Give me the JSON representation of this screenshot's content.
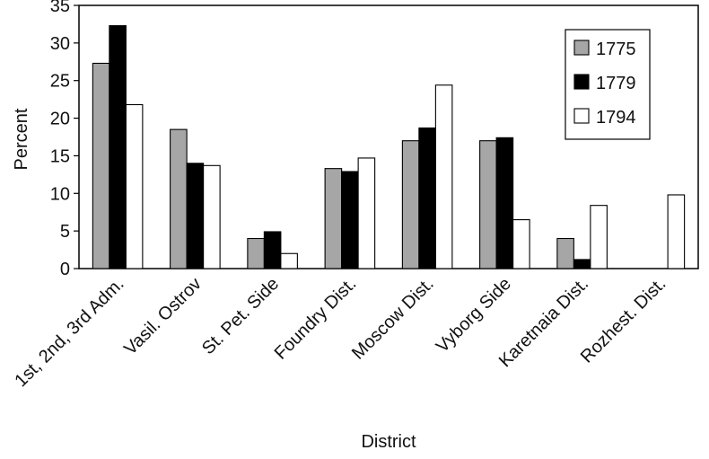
{
  "chart_data": {
    "type": "bar",
    "title": "",
    "xlabel": "District",
    "ylabel": "Percent",
    "ylim": [
      0,
      35
    ],
    "yticks": [
      0,
      5,
      10,
      15,
      20,
      25,
      30,
      35
    ],
    "categories": [
      "1st, 2nd, 3rd Adm.",
      "Vasil. Ostrov",
      "St. Pet. Side",
      "Foundry Dist.",
      "Moscow Dist.",
      "Vyborg Side",
      "Karetnaia Dist.",
      "Rozhest. Dist."
    ],
    "series": [
      {
        "name": "1775",
        "color": "#a6a6a6",
        "values": [
          27.3,
          18.5,
          4.0,
          13.3,
          17.0,
          17.0,
          4.0,
          0
        ]
      },
      {
        "name": "1779",
        "color": "#000000",
        "values": [
          32.3,
          14.0,
          4.9,
          12.9,
          18.7,
          17.4,
          1.2,
          0
        ]
      },
      {
        "name": "1794",
        "color": "#ffffff",
        "values": [
          21.8,
          13.7,
          2.0,
          14.7,
          24.4,
          6.5,
          8.4,
          9.8
        ]
      }
    ],
    "legend": {
      "position": "top-right"
    }
  }
}
